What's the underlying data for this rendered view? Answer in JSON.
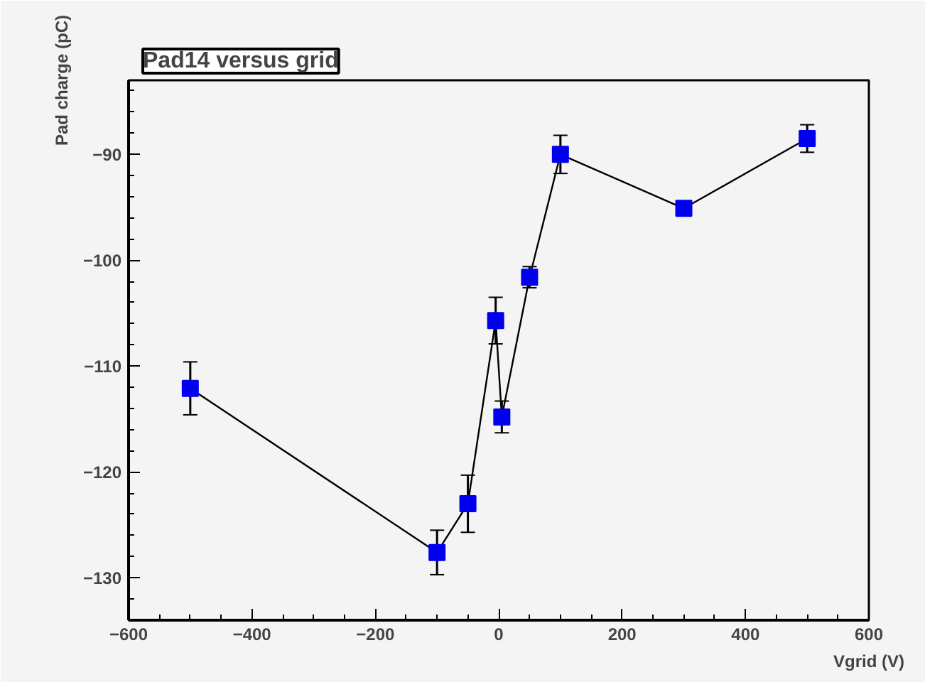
{
  "chart_data": {
    "type": "line",
    "title": "Pad14 versus grid",
    "xlabel": "Vgrid (V)",
    "ylabel": "Pad charge (pC)",
    "x": [
      -500,
      -100,
      -50,
      -5,
      5,
      50,
      100,
      300,
      500
    ],
    "series": [
      {
        "color": "#0000ee",
        "values": [
          -112.1,
          -127.6,
          -123.0,
          -105.7,
          -114.8,
          -101.6,
          -90.0,
          -95.1,
          -88.5
        ],
        "errors": [
          2.5,
          2.1,
          2.7,
          2.2,
          1.5,
          1.0,
          1.8,
          null,
          1.3
        ]
      }
    ],
    "xlim": [
      -600,
      600
    ],
    "ylim": [
      -134,
      -83
    ],
    "xticks": [
      -600,
      -400,
      -200,
      0,
      200,
      400,
      600
    ],
    "yticks": [
      -130,
      -120,
      -110,
      -100,
      -90
    ],
    "marker": "square",
    "line_style": "solid",
    "grid": false
  }
}
